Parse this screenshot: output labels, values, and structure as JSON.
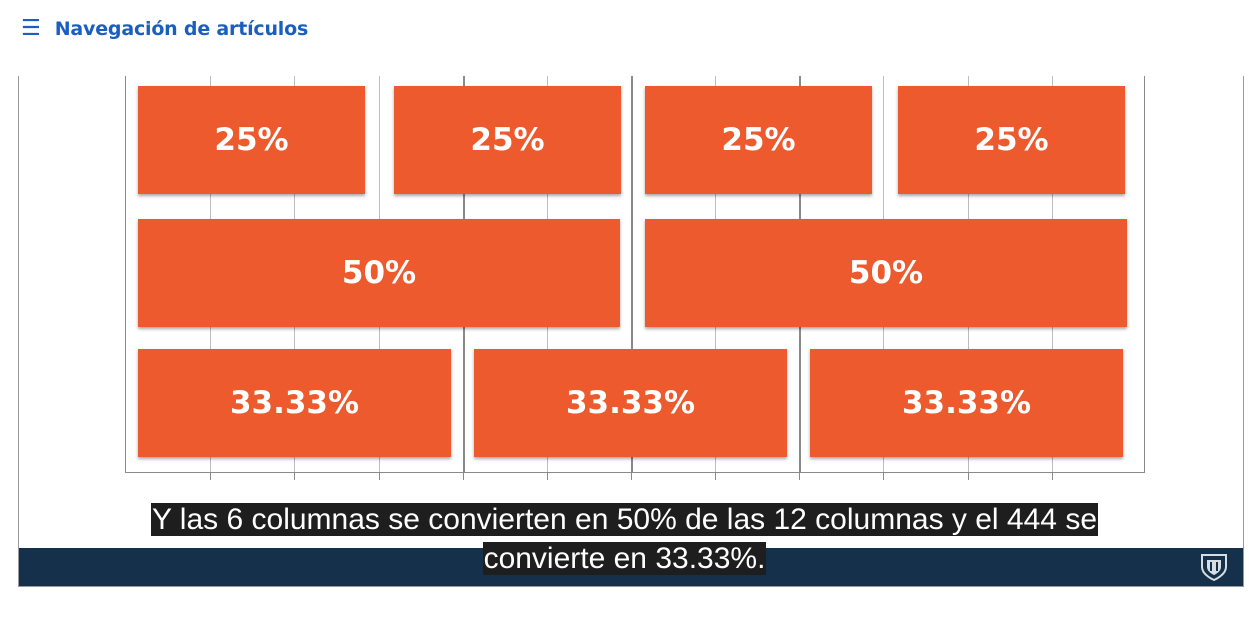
{
  "nav": {
    "menu_icon": "☰",
    "label": "Navegación de artículos"
  },
  "slide": {
    "row1": [
      "25%",
      "25%",
      "25%",
      "25%"
    ],
    "row2": [
      "50%",
      "50%"
    ],
    "row3": [
      "33.33%",
      "33.33%",
      "33.33%"
    ]
  },
  "caption": {
    "line1": "Y las 6 columnas se convierten en 50% de las 12 columnas y el 444 se",
    "line2": "convierte en 33.33%."
  },
  "colors": {
    "accent": "#1a5fc0",
    "cell": "#ec5a2e",
    "player_bar": "#14304b"
  },
  "icons": {
    "menu": "hamburger-menu-icon",
    "logo": "university-shield-logo"
  }
}
